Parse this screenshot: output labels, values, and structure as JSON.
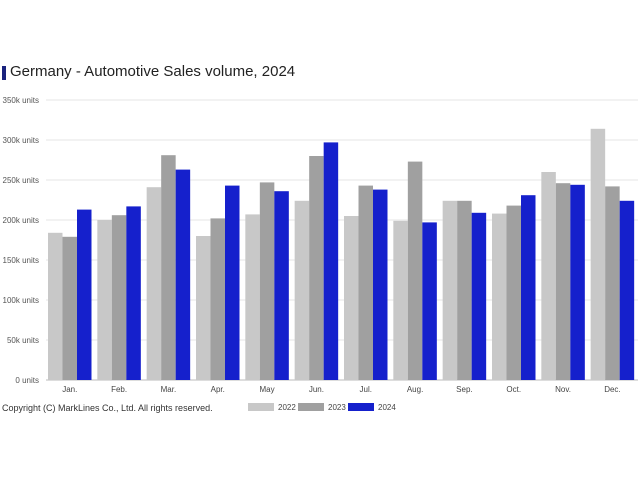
{
  "title": "Germany - Automotive Sales volume, 2024",
  "copyright": "Copyright (C) MarkLines Co., Ltd. All rights reserved.",
  "chart_data": {
    "type": "bar",
    "title": "Germany - Automotive Sales volume, 2024",
    "categories": [
      "Jan.",
      "Feb.",
      "Mar.",
      "Apr.",
      "May",
      "Jun.",
      "Jul.",
      "Aug.",
      "Sep.",
      "Oct.",
      "Nov.",
      "Dec."
    ],
    "series": [
      {
        "name": "2022",
        "color": "#c8c8c8",
        "values": [
          184000,
          200000,
          241000,
          180000,
          207000,
          224000,
          205000,
          199000,
          224000,
          208000,
          260000,
          314000
        ]
      },
      {
        "name": "2023",
        "color": "#a0a0a0",
        "values": [
          179000,
          206000,
          281000,
          202000,
          247000,
          280000,
          243000,
          273000,
          224000,
          218000,
          246000,
          242000
        ]
      },
      {
        "name": "2024",
        "color": "#1520cc",
        "values": [
          213000,
          217000,
          263000,
          243000,
          236000,
          297000,
          238000,
          197000,
          209000,
          231000,
          244000,
          224000
        ]
      }
    ],
    "yticks": [
      "0 units",
      "50k units",
      "100k units",
      "150k units",
      "200k units",
      "250k units",
      "300k units",
      "350k units"
    ],
    "ylim": [
      0,
      350000
    ],
    "grid": true,
    "legend_position": "bottom"
  }
}
